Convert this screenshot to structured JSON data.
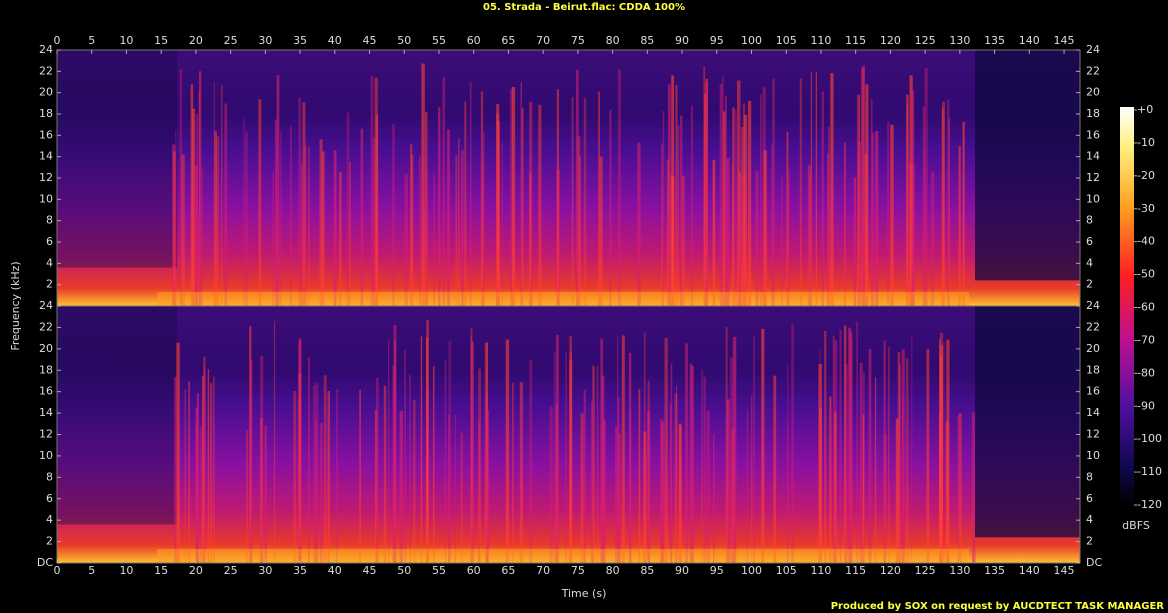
{
  "title": "05. Strada - Beirut.flac: CDDA 100%",
  "footer": "Produced by SOX on request by AUCDTECT TASK MANAGER",
  "colorbar": {
    "label": "dBFS",
    "clim": [
      -120,
      0
    ],
    "cticks": [
      {
        "value": 0,
        "label": "+0"
      },
      -10,
      -20,
      -30,
      -40,
      -50,
      -60,
      -70,
      -80,
      -90,
      -100,
      -110,
      -120
    ]
  },
  "chart_data": [
    {
      "type": "spectrogram",
      "xlabel": "Time (s)",
      "ylabel": "Frequency (kHz)",
      "xaxis_position": "top",
      "xlim": [
        0,
        147.3
      ],
      "xticks": [
        0,
        5,
        10,
        15,
        20,
        25,
        30,
        35,
        40,
        45,
        50,
        55,
        60,
        65,
        70,
        75,
        80,
        85,
        90,
        95,
        100,
        105,
        110,
        115,
        120,
        125,
        130,
        135,
        140,
        145
      ],
      "ylim": [
        0,
        24
      ],
      "yticks": [
        2,
        4,
        6,
        8,
        10,
        12,
        14,
        16,
        18,
        20,
        22,
        24
      ]
    },
    {
      "type": "spectrogram",
      "xaxis_position": "bottom",
      "xlim": [
        0,
        147.3
      ],
      "xticks": [
        0,
        5,
        10,
        15,
        20,
        25,
        30,
        35,
        40,
        45,
        50,
        55,
        60,
        65,
        70,
        75,
        80,
        85,
        90,
        95,
        100,
        105,
        110,
        115,
        120,
        125,
        130,
        135,
        140,
        145
      ],
      "ylim": [
        0,
        24
      ],
      "yticks": [
        {
          "value": 0,
          "label": "DC"
        },
        2,
        4,
        6,
        8,
        10,
        12,
        14,
        16,
        18,
        20,
        22,
        24
      ]
    }
  ]
}
